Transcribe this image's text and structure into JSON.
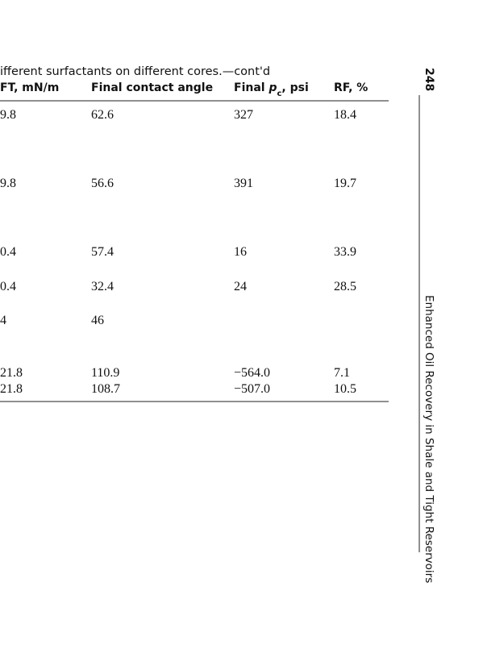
{
  "caption": "ifferent surfactants on different cores.—cont'd",
  "table": {
    "header": [
      "FT, mN/m",
      "Final contact angle",
      {
        "parts": [
          "Final ",
          "p",
          "c",
          ", psi"
        ]
      },
      "RF, %"
    ],
    "rows": [
      [
        "9.8",
        "62.6",
        "327",
        "18.4"
      ],
      [
        "9.8",
        "56.6",
        "391",
        "19.7"
      ],
      [
        "0.4",
        "57.4",
        "16",
        "33.9"
      ],
      [
        "0.4",
        "32.4",
        "24",
        "28.5"
      ],
      [
        "4",
        "46",
        null,
        null
      ],
      [
        "21.8",
        "110.9",
        "−564.0",
        "7.1"
      ],
      [
        "21.8",
        "108.7",
        "−507.0",
        "10.5"
      ]
    ]
  },
  "page_number": "248",
  "running_head": "Enhanced Oil Recovery in Shale and Tight Reservoirs"
}
